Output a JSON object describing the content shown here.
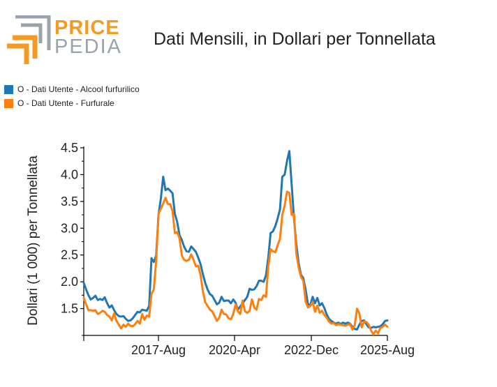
{
  "header": {
    "logo_top": "PRICE",
    "logo_bottom": "PEDIA",
    "title": "Dati Mensili, in Dollari per Tonnellata"
  },
  "colors": {
    "series_1": "#1f77b4",
    "series_2": "#ff7f0e",
    "logo_orange": "#f59a22",
    "logo_grey": "#9aa3ab"
  },
  "legend": [
    {
      "label": "O - Dati Utente - Alcool furfurilico",
      "color": "#1f77b4"
    },
    {
      "label": "O - Dati Utente - Furfurale",
      "color": "#ff7f0e"
    }
  ],
  "chart_data": {
    "type": "line",
    "title": "Dati Mensili, in Dollari per Tonnellata",
    "xlabel": "",
    "ylabel": "Dollari (1 000) per Tonnellata",
    "x_tick_labels": [
      "2017-Aug",
      "2020-Apr",
      "2022-Dec",
      "2025-Aug"
    ],
    "y_ticks": [
      "1.5",
      "2.0",
      "2.5",
      "3.0",
      "3.5",
      "4.0",
      "4.5"
    ],
    "ylim": [
      1.0,
      4.5
    ],
    "grid": false,
    "legend_position": "top-left",
    "series": [
      {
        "name": "O - Dati Utente - Alcool furfurilico",
        "color": "#1f77b4",
        "values": [
          1.98,
          1.86,
          1.75,
          1.67,
          1.7,
          1.74,
          1.66,
          1.68,
          1.66,
          1.71,
          1.6,
          1.52,
          1.56,
          1.47,
          1.4,
          1.36,
          1.35,
          1.36,
          1.31,
          1.27,
          1.28,
          1.32,
          1.38,
          1.44,
          1.43,
          1.48,
          1.47,
          1.46,
          1.55,
          2.44,
          2.37,
          2.49,
          3.25,
          3.55,
          3.96,
          3.71,
          3.74,
          3.7,
          3.65,
          3.27,
          3.12,
          2.87,
          2.78,
          2.65,
          2.57,
          2.56,
          2.66,
          2.61,
          2.56,
          2.45,
          2.33,
          2.14,
          1.98,
          1.86,
          1.77,
          1.74,
          1.66,
          1.58,
          1.61,
          1.72,
          1.64,
          1.65,
          1.65,
          1.6,
          1.67,
          1.61,
          1.48,
          1.54,
          1.6,
          1.66,
          1.72,
          1.87,
          1.85,
          1.86,
          1.92,
          2.02,
          2.02,
          2.0,
          2.12,
          2.45,
          2.91,
          2.94,
          3.04,
          3.18,
          3.35,
          3.96,
          4.0,
          4.25,
          4.44,
          3.82,
          3.18,
          2.7,
          2.35,
          2.13,
          2.07,
          1.85,
          1.58,
          1.57,
          1.72,
          1.6,
          1.7,
          1.56,
          1.6,
          1.51,
          1.39,
          1.31,
          1.27,
          1.24,
          1.22,
          1.24,
          1.21,
          1.24,
          1.22,
          1.24,
          1.22,
          1.16,
          1.12,
          1.11,
          1.2,
          1.27,
          1.28,
          1.21,
          1.15,
          1.14,
          1.16,
          1.15,
          1.16,
          1.17,
          1.21,
          1.27,
          1.28
        ]
      },
      {
        "name": "O - Dati Utente - Furfurale",
        "color": "#ff7f0e",
        "values": [
          1.7,
          1.58,
          1.47,
          1.47,
          1.46,
          1.47,
          1.4,
          1.42,
          1.46,
          1.44,
          1.38,
          1.35,
          1.28,
          1.41,
          1.27,
          1.2,
          1.13,
          1.2,
          1.16,
          1.22,
          1.18,
          1.17,
          1.21,
          1.27,
          1.22,
          1.4,
          1.29,
          1.37,
          1.35,
          1.77,
          1.86,
          2.39,
          3.27,
          3.36,
          3.46,
          3.57,
          3.45,
          3.45,
          3.32,
          2.91,
          2.93,
          2.81,
          2.49,
          2.41,
          2.39,
          2.41,
          2.51,
          2.41,
          2.29,
          2.3,
          2.13,
          1.82,
          1.62,
          1.55,
          1.48,
          1.45,
          1.36,
          1.27,
          1.33,
          1.48,
          1.4,
          1.39,
          1.32,
          1.3,
          1.4,
          1.58,
          1.45,
          1.4,
          1.65,
          1.45,
          1.42,
          1.46,
          1.67,
          1.52,
          1.48,
          1.68,
          1.66,
          1.75,
          1.72,
          2.28,
          2.61,
          2.57,
          2.55,
          2.68,
          2.8,
          3.25,
          3.42,
          3.68,
          3.66,
          3.25,
          3.27,
          2.53,
          2.27,
          2.09,
          2.02,
          1.63,
          1.52,
          1.55,
          1.62,
          1.44,
          1.56,
          1.42,
          1.46,
          1.38,
          1.33,
          1.26,
          1.22,
          1.23,
          1.19,
          1.21,
          1.2,
          1.19,
          1.18,
          1.2,
          1.21,
          1.11,
          1.19,
          1.5,
          1.41,
          1.15,
          1.26,
          1.25,
          1.2,
          1.09,
          1.02,
          1.09,
          1.04,
          1.14,
          1.16,
          1.2,
          1.16
        ]
      }
    ]
  }
}
